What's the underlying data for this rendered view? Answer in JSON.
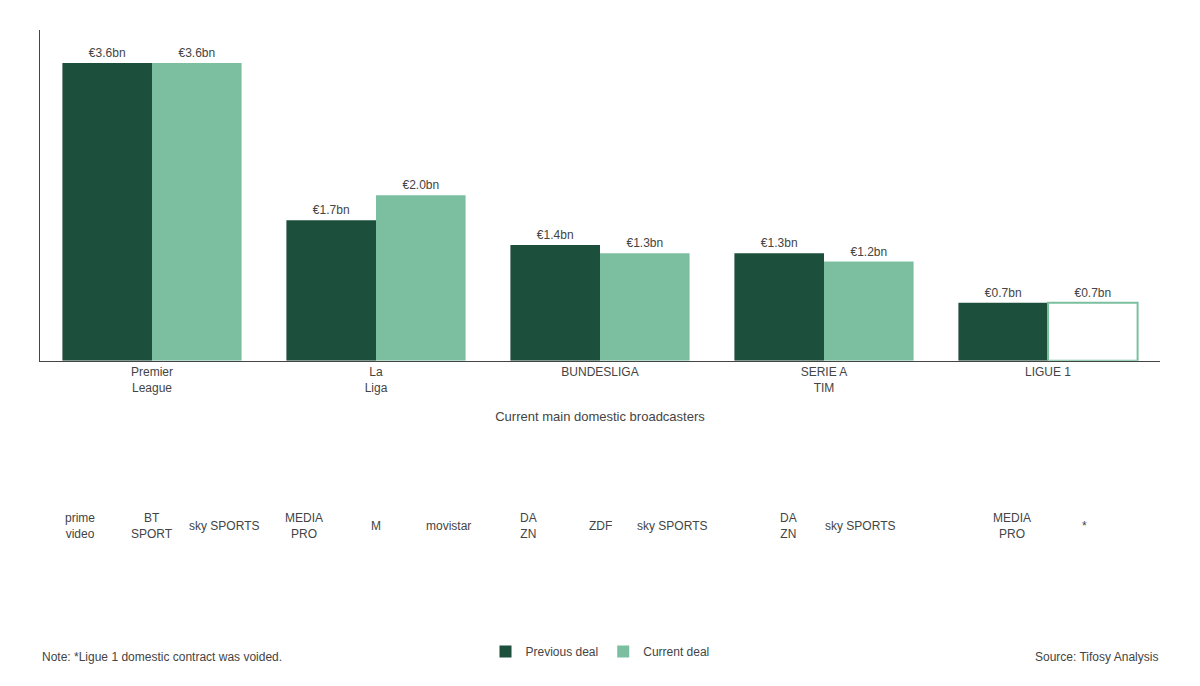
{
  "chart_data": {
    "type": "bar",
    "categories": [
      "Premier\nLeague",
      "La\nLiga",
      "BUNDESLIGA",
      "SERIE A\nTIM",
      "LIGUE 1"
    ],
    "series": [
      {
        "name": "Previous deal",
        "color": "#1c4f3c",
        "values": [
          3.6,
          1.7,
          1.4,
          1.3,
          0.7
        ],
        "value_labels": [
          "€3.6bn",
          "€1.7bn",
          "€1.4bn",
          "€1.3bn",
          "€0.7bn"
        ]
      },
      {
        "name": "Current deal",
        "color": "#7bbfa0",
        "values": [
          3.6,
          2.0,
          1.3,
          1.2,
          0.7
        ],
        "value_labels": [
          "€3.6bn",
          "€2.0bn",
          "€1.3bn",
          "€1.2bn",
          "€0.7bn"
        ]
      }
    ],
    "xlabel": "Current main domestic broadcasters",
    "ylim": [
      0,
      4.0
    ],
    "yticks": [],
    "tick_labels": "x",
    "grid": false,
    "legend": "bottom",
    "data_labels": true,
    "annotations": [
      {
        "x": 0,
        "text": "prime\nvideo"
      },
      {
        "x": 0,
        "text": "BT\nSPORT"
      },
      {
        "x": 0,
        "text": "sky SPORTS"
      },
      {
        "x": 1,
        "text": "MEDIA\nPRO"
      },
      {
        "x": 1,
        "text": "M"
      },
      {
        "x": 1,
        "text": "movistar"
      },
      {
        "x": 2,
        "text": "DA\nZN"
      },
      {
        "x": 2,
        "text": "ZDF"
      },
      {
        "x": 2,
        "text": "sky SPORTS"
      },
      {
        "x": 3,
        "text": "DA\nZN"
      },
      {
        "x": 3,
        "text": "sky SPORTS"
      },
      {
        "x": 4,
        "text": "MEDIA\nPRO"
      },
      {
        "x": 4,
        "text": "*"
      },
      {
        "text": "Note: *Ligue 1 domestic contract was voided."
      },
      {
        "text": "Source: Tifosy Analysis"
      }
    ]
  }
}
